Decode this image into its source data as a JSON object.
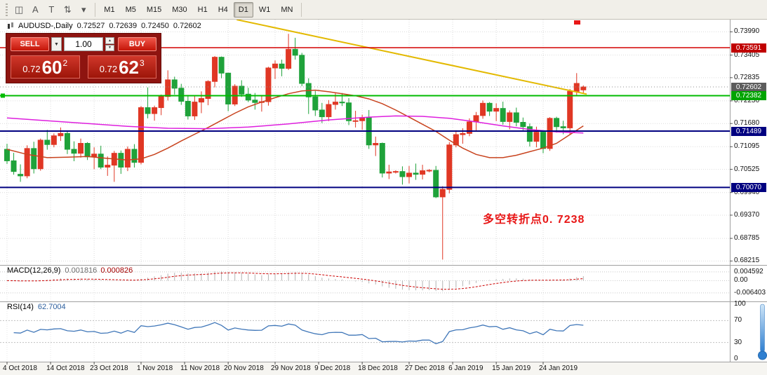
{
  "toolbar": {
    "icons": [
      {
        "name": "new-chart-icon",
        "glyph": "◫"
      },
      {
        "name": "text-label-icon",
        "glyph": "A"
      },
      {
        "name": "template-icon",
        "glyph": "T"
      },
      {
        "name": "indicators-icon",
        "glyph": "⇅"
      },
      {
        "name": "dropdown-caret-icon",
        "glyph": "▾"
      }
    ],
    "timeframes": [
      {
        "label": "M1",
        "active": false
      },
      {
        "label": "M5",
        "active": false
      },
      {
        "label": "M15",
        "active": false
      },
      {
        "label": "M30",
        "active": false
      },
      {
        "label": "H1",
        "active": false
      },
      {
        "label": "H4",
        "active": false
      },
      {
        "label": "D1",
        "active": true
      },
      {
        "label": "W1",
        "active": false
      },
      {
        "label": "MN",
        "active": false
      }
    ]
  },
  "chart": {
    "header": {
      "title": "AUDUSD-,Daily",
      "open": "0.72527",
      "high": "0.72639",
      "low": "0.72450",
      "close": "0.72602"
    },
    "trade_panel": {
      "sell_label": "SELL",
      "buy_label": "BUY",
      "lot_value": "1.00",
      "bid": {
        "small": "0.72",
        "big": "60",
        "sup": "2"
      },
      "ask": {
        "small": "0.72",
        "big": "62",
        "sup": "3"
      }
    },
    "annotation": {
      "text": "多空转折点0. 7238",
      "color": "#e81717"
    },
    "hlines": [
      {
        "name": "resistance-line",
        "price": 0.73591,
        "label": "0.73591",
        "color": "#d40000",
        "tag_bg": "#c00000",
        "width": 1.5,
        "style": "solid"
      },
      {
        "name": "bid-price-line",
        "price": 0.72602,
        "label": "0.72602",
        "color": "#909090",
        "tag_bg": "#5c5c5c",
        "width": 1,
        "style": "dotted"
      },
      {
        "name": "breakout-line",
        "price": 0.72382,
        "label": "0.72382",
        "color": "#00bb00",
        "tag_bg": "#00a400",
        "width": 2,
        "style": "solid",
        "handle": true
      },
      {
        "name": "support-line-1",
        "price": 0.71489,
        "label": "0.71489",
        "color": "#000080",
        "tag_bg": "#000080",
        "width": 2,
        "style": "solid"
      },
      {
        "name": "support-line-2",
        "price": 0.7007,
        "label": "0.70070",
        "color": "#000080",
        "tag_bg": "#000080",
        "width": 2,
        "style": "solid"
      }
    ],
    "trendline": {
      "bar1": 42,
      "price1": 0.7402,
      "bar2": 86.5,
      "price2": 0.7242,
      "color": "#e3b900"
    }
  },
  "chart_data": {
    "type": "candlestick",
    "title": "AUDUSD-,Daily",
    "up_color": "#e03724",
    "down_color": "#1fa23a",
    "y_range": {
      "min": 0.68115,
      "max": 0.74298
    },
    "y_ticks": [
      "0.73990",
      "0.73405",
      "0.72835",
      "0.72250",
      "0.71680",
      "0.71095",
      "0.70525",
      "0.69940",
      "0.69370",
      "0.68785",
      "0.68215"
    ],
    "x_labels": [
      {
        "text": "4 Oct 2018",
        "bar": 0
      },
      {
        "text": "14 Oct 2018",
        "bar": 6.5
      },
      {
        "text": "23 Oct 2018",
        "bar": 13
      },
      {
        "text": "1 Nov 2018",
        "bar": 20
      },
      {
        "text": "11 Nov 2018",
        "bar": 26.5
      },
      {
        "text": "20 Nov 2018",
        "bar": 33
      },
      {
        "text": "29 Nov 2018",
        "bar": 40
      },
      {
        "text": "9 Dec 2018",
        "bar": 46.5
      },
      {
        "text": "18 Dec 2018",
        "bar": 53
      },
      {
        "text": "27 Dec 2018",
        "bar": 60
      },
      {
        "text": "6 Jan 2019",
        "bar": 66.5
      },
      {
        "text": "15 Jan 2019",
        "bar": 73
      },
      {
        "text": "24 Jan 2019",
        "bar": 80
      }
    ],
    "candles": [
      [
        0.7103,
        0.7117,
        0.7066,
        0.7074
      ],
      [
        0.7074,
        0.7094,
        0.7039,
        0.7047
      ],
      [
        0.704,
        0.7065,
        0.7021,
        0.7036
      ],
      [
        0.7036,
        0.7113,
        0.703,
        0.7105
      ],
      [
        0.7105,
        0.7122,
        0.7042,
        0.7054
      ],
      [
        0.7054,
        0.713,
        0.7049,
        0.7126
      ],
      [
        0.7126,
        0.7152,
        0.7102,
        0.7115
      ],
      [
        0.7115,
        0.7143,
        0.7108,
        0.7137
      ],
      [
        0.7137,
        0.7158,
        0.7124,
        0.7143
      ],
      [
        0.7143,
        0.715,
        0.7091,
        0.7103
      ],
      [
        0.7103,
        0.7123,
        0.7073,
        0.7093
      ],
      [
        0.7093,
        0.713,
        0.7082,
        0.7118
      ],
      [
        0.7118,
        0.7121,
        0.7076,
        0.7084
      ],
      [
        0.7084,
        0.7108,
        0.7053,
        0.7091
      ],
      [
        0.7091,
        0.7112,
        0.7053,
        0.7058
      ],
      [
        0.7058,
        0.7085,
        0.7036,
        0.7063
      ],
      [
        0.7063,
        0.7099,
        0.7021,
        0.7093
      ],
      [
        0.7093,
        0.71,
        0.7041,
        0.7058
      ],
      [
        0.7058,
        0.711,
        0.7048,
        0.7103
      ],
      [
        0.7103,
        0.7116,
        0.7057,
        0.707
      ],
      [
        0.707,
        0.7212,
        0.7065,
        0.7208
      ],
      [
        0.7208,
        0.7259,
        0.7181,
        0.7193
      ],
      [
        0.7193,
        0.7213,
        0.7175,
        0.7208
      ],
      [
        0.7208,
        0.7241,
        0.7189,
        0.7236
      ],
      [
        0.7236,
        0.7302,
        0.7226,
        0.7278
      ],
      [
        0.7278,
        0.7286,
        0.7241,
        0.7257
      ],
      [
        0.7257,
        0.7268,
        0.7215,
        0.7224
      ],
      [
        0.7224,
        0.724,
        0.7178,
        0.7187
      ],
      [
        0.7187,
        0.7237,
        0.7177,
        0.7222
      ],
      [
        0.7222,
        0.7249,
        0.7194,
        0.7231
      ],
      [
        0.7231,
        0.7277,
        0.7214,
        0.7274
      ],
      [
        0.7274,
        0.7338,
        0.7259,
        0.7335
      ],
      [
        0.7335,
        0.7337,
        0.7282,
        0.7295
      ],
      [
        0.7295,
        0.7296,
        0.7199,
        0.7217
      ],
      [
        0.7217,
        0.7267,
        0.7212,
        0.7262
      ],
      [
        0.7262,
        0.7277,
        0.7235,
        0.7242
      ],
      [
        0.7242,
        0.7258,
        0.7222,
        0.7227
      ],
      [
        0.7227,
        0.7245,
        0.7203,
        0.7221
      ],
      [
        0.7221,
        0.7237,
        0.7198,
        0.7223
      ],
      [
        0.7223,
        0.7311,
        0.7213,
        0.7308
      ],
      [
        0.7308,
        0.7327,
        0.728,
        0.7318
      ],
      [
        0.7318,
        0.7329,
        0.7287,
        0.7307
      ],
      [
        0.7307,
        0.7394,
        0.7303,
        0.7355
      ],
      [
        0.7355,
        0.7384,
        0.7329,
        0.734
      ],
      [
        0.734,
        0.7346,
        0.7262,
        0.7269
      ],
      [
        0.7269,
        0.7282,
        0.7192,
        0.7235
      ],
      [
        0.7235,
        0.725,
        0.7187,
        0.7202
      ],
      [
        0.7202,
        0.722,
        0.7169,
        0.7185
      ],
      [
        0.7185,
        0.7227,
        0.7174,
        0.7216
      ],
      [
        0.7216,
        0.7246,
        0.7203,
        0.7222
      ],
      [
        0.7222,
        0.7245,
        0.7212,
        0.722
      ],
      [
        0.722,
        0.7232,
        0.7164,
        0.7175
      ],
      [
        0.7175,
        0.72,
        0.7158,
        0.7175
      ],
      [
        0.7175,
        0.719,
        0.7152,
        0.7183
      ],
      [
        0.7183,
        0.7202,
        0.7104,
        0.7114
      ],
      [
        0.7114,
        0.7135,
        0.7086,
        0.7118
      ],
      [
        0.7118,
        0.712,
        0.7032,
        0.7043
      ],
      [
        0.7043,
        0.7064,
        0.7028,
        0.7046
      ],
      [
        0.7046,
        0.705,
        0.7042,
        0.7047
      ],
      [
        0.7047,
        0.706,
        0.7014,
        0.7034
      ],
      [
        0.7034,
        0.7061,
        0.7017,
        0.7043
      ],
      [
        0.7043,
        0.7067,
        0.7026,
        0.704
      ],
      [
        0.704,
        0.7064,
        0.7027,
        0.7049
      ],
      [
        0.7049,
        0.7053,
        0.7045,
        0.705
      ],
      [
        0.705,
        0.7061,
        0.698,
        0.6983
      ],
      [
        0.6983,
        0.701,
        0.6825,
        0.7002
      ],
      [
        0.7002,
        0.7121,
        0.6992,
        0.7114
      ],
      [
        0.7114,
        0.7151,
        0.7108,
        0.714
      ],
      [
        0.714,
        0.7156,
        0.7117,
        0.7143
      ],
      [
        0.7143,
        0.7181,
        0.7136,
        0.7172
      ],
      [
        0.7172,
        0.7197,
        0.7149,
        0.7188
      ],
      [
        0.7188,
        0.7226,
        0.718,
        0.7219
      ],
      [
        0.7219,
        0.7222,
        0.7187,
        0.7199
      ],
      [
        0.7199,
        0.7219,
        0.7174,
        0.7206
      ],
      [
        0.7206,
        0.7223,
        0.7165,
        0.7173
      ],
      [
        0.7173,
        0.7201,
        0.7153,
        0.7195
      ],
      [
        0.7195,
        0.7208,
        0.7161,
        0.7171
      ],
      [
        0.7171,
        0.7183,
        0.7151,
        0.716
      ],
      [
        0.716,
        0.7168,
        0.711,
        0.7123
      ],
      [
        0.7123,
        0.716,
        0.7108,
        0.7146
      ],
      [
        0.7146,
        0.715,
        0.7093,
        0.7105
      ],
      [
        0.7105,
        0.7184,
        0.7099,
        0.7181
      ],
      [
        0.7181,
        0.7185,
        0.7145,
        0.716
      ],
      [
        0.716,
        0.7175,
        0.7141,
        0.7157
      ],
      [
        0.7157,
        0.7255,
        0.7141,
        0.7249
      ],
      [
        0.7249,
        0.7295,
        0.7237,
        0.7269
      ],
      [
        0.72527,
        0.72639,
        0.7245,
        0.72602
      ]
    ],
    "ma_fast": {
      "color": "#c8431e",
      "points": [
        [
          0,
          0.7103
        ],
        [
          3,
          0.709
        ],
        [
          6,
          0.7082
        ],
        [
          9,
          0.7083
        ],
        [
          12,
          0.7085
        ],
        [
          15,
          0.708
        ],
        [
          18,
          0.7076
        ],
        [
          20,
          0.7079
        ],
        [
          22,
          0.709
        ],
        [
          24,
          0.7106
        ],
        [
          26,
          0.7124
        ],
        [
          28,
          0.7141
        ],
        [
          30,
          0.7158
        ],
        [
          32,
          0.7176
        ],
        [
          34,
          0.7194
        ],
        [
          36,
          0.721
        ],
        [
          38,
          0.7222
        ],
        [
          40,
          0.7233
        ],
        [
          42,
          0.7243
        ],
        [
          44,
          0.725
        ],
        [
          46,
          0.7252
        ],
        [
          48,
          0.7248
        ],
        [
          50,
          0.7243
        ],
        [
          52,
          0.7238
        ],
        [
          54,
          0.723
        ],
        [
          56,
          0.7218
        ],
        [
          58,
          0.7202
        ],
        [
          60,
          0.7184
        ],
        [
          62,
          0.7166
        ],
        [
          64,
          0.7148
        ],
        [
          66,
          0.7126
        ],
        [
          68,
          0.7106
        ],
        [
          70,
          0.709
        ],
        [
          72,
          0.7082
        ],
        [
          74,
          0.7082
        ],
        [
          76,
          0.7088
        ],
        [
          78,
          0.7097
        ],
        [
          80,
          0.7106
        ],
        [
          82,
          0.7118
        ],
        [
          84,
          0.714
        ],
        [
          86,
          0.7162
        ]
      ]
    },
    "ma_slow": {
      "color": "#de1fde",
      "points": [
        [
          0,
          0.7182
        ],
        [
          6,
          0.7175
        ],
        [
          12,
          0.7168
        ],
        [
          18,
          0.7161
        ],
        [
          24,
          0.7156
        ],
        [
          30,
          0.7155
        ],
        [
          36,
          0.7159
        ],
        [
          42,
          0.7167
        ],
        [
          48,
          0.7177
        ],
        [
          54,
          0.7184
        ],
        [
          58,
          0.7187
        ],
        [
          62,
          0.7186
        ],
        [
          66,
          0.7181
        ],
        [
          70,
          0.7172
        ],
        [
          74,
          0.7162
        ],
        [
          78,
          0.7153
        ],
        [
          82,
          0.7147
        ],
        [
          86,
          0.7144
        ]
      ]
    }
  },
  "macd": {
    "label": "MACD(12,26,9)",
    "main_value": "0.001816",
    "signal_value": "0.000826",
    "fast": 12,
    "slow": 26,
    "signal": 9,
    "axis_labels": [
      "0.004592",
      "0.00",
      "-0.006403"
    ],
    "axis_values": [
      0.004592,
      0,
      -0.006403
    ],
    "range": {
      "max": 0.0075,
      "min": -0.0105
    },
    "histogram_color": "#b4b4b4",
    "signal_color": "#cc0000"
  },
  "rsi": {
    "label": "RSI(14)",
    "value": "62.7004",
    "period": 14,
    "axis_labels": [
      "100",
      "70",
      "30",
      "0"
    ],
    "axis_values": [
      100,
      70,
      30,
      0
    ],
    "levels": [
      70,
      30
    ],
    "line_color": "#3f76b8"
  }
}
